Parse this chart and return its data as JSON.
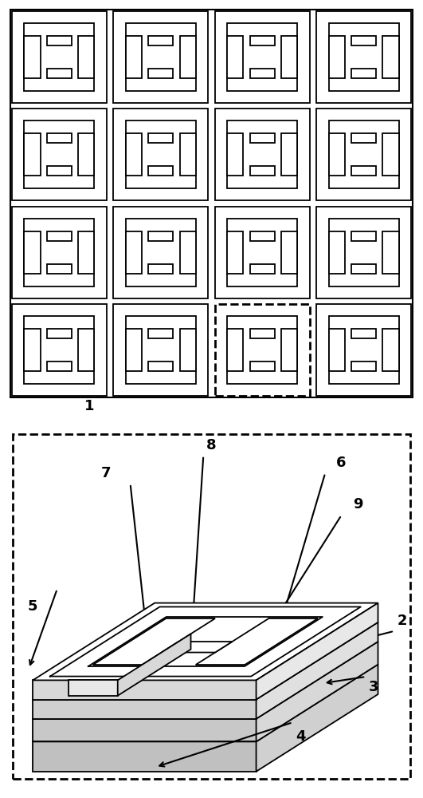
{
  "fig_width": 5.31,
  "fig_height": 10.0,
  "dpi": 100,
  "bg_color": "#ffffff",
  "line_color": "#000000",
  "grid_rows": 4,
  "grid_cols": 4,
  "label_fontsize": 13
}
